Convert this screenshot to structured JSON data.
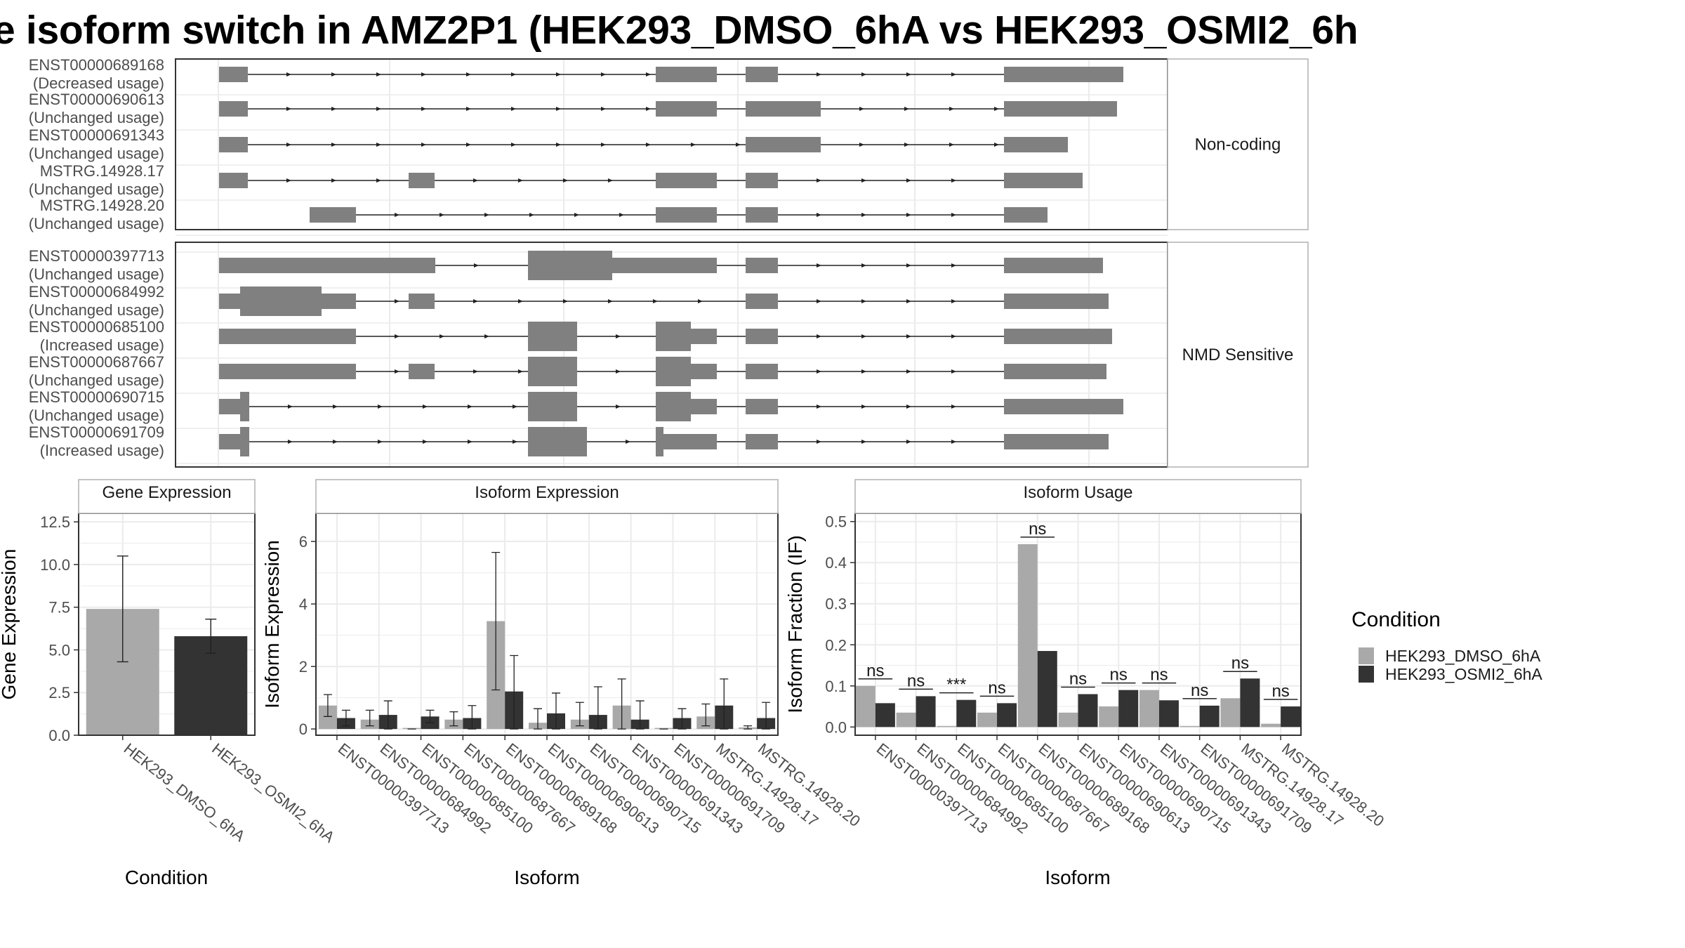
{
  "title": "e isoform switch in AMZ2P1 (HEK293_DMSO_6hA vs HEK293_OSMI2_6h",
  "colors": {
    "exon": "#808080",
    "dmso": "#a9a9a9",
    "osmi": "#333333",
    "grid": "#ebebeb",
    "panel_border": "#333333",
    "strip_border": "#b0b0b0"
  },
  "chart_data": [
    {
      "type": "gene-structure",
      "facets": [
        {
          "label": "Non-coding",
          "isoforms": [
            {
              "id": "ENST00000689168",
              "usage": "(Decreased usage)"
            },
            {
              "id": "ENST00000690613",
              "usage": "(Unchanged usage)"
            },
            {
              "id": "ENST00000691343",
              "usage": "(Unchanged usage)"
            },
            {
              "id": "MSTRG.14928.17",
              "usage": "(Unchanged usage)"
            },
            {
              "id": "MSTRG.14928.20",
              "usage": "(Unchanged usage)"
            }
          ]
        },
        {
          "label": "NMD Sensitive",
          "isoforms": [
            {
              "id": "ENST00000397713",
              "usage": "(Unchanged usage)"
            },
            {
              "id": "ENST00000684992",
              "usage": "(Unchanged usage)"
            },
            {
              "id": "ENST00000685100",
              "usage": "(Increased usage)"
            },
            {
              "id": "ENST00000687667",
              "usage": "(Unchanged usage)"
            },
            {
              "id": "ENST00000690715",
              "usage": "(Unchanged usage)"
            },
            {
              "id": "ENST00000691709",
              "usage": "(Increased usage)"
            }
          ]
        }
      ]
    },
    {
      "type": "bar",
      "title": "Gene Expression",
      "xlabel": "Condition",
      "ylabel": "Gene Expression",
      "ylim": [
        0,
        13
      ],
      "yticks": [
        "0.0",
        "2.5",
        "5.0",
        "7.5",
        "10.0",
        "12.5"
      ],
      "categories": [
        "HEK293_DMSO_6hA",
        "HEK293_OSMI2_6hA"
      ],
      "values": [
        7.4,
        5.8
      ],
      "error_low": [
        4.3,
        4.8
      ],
      "error_high": [
        10.5,
        6.8
      ]
    },
    {
      "type": "bar",
      "title": "Isoform Expression",
      "xlabel": "Isoform",
      "ylabel": "Isoform Expression",
      "ylim": [
        -0.2,
        6.9
      ],
      "yticks": [
        "0",
        "2",
        "4",
        "6"
      ],
      "categories": [
        "ENST00000397713",
        "ENST00000684992",
        "ENST00000685100",
        "ENST00000687667",
        "ENST00000689168",
        "ENST00000690613",
        "ENST00000690715",
        "ENST00000691343",
        "ENST00000691709",
        "MSTRG.14928.17",
        "MSTRG.14928.20"
      ],
      "series": [
        {
          "name": "HEK293_DMSO_6hA",
          "values": [
            0.75,
            0.3,
            0.0,
            0.3,
            3.45,
            0.2,
            0.3,
            0.75,
            0.0,
            0.4,
            0.05
          ],
          "error_low": [
            0.4,
            0.1,
            0.0,
            0.1,
            1.25,
            0.0,
            0.1,
            0.0,
            0.0,
            0.1,
            0.0
          ],
          "error_high": [
            1.1,
            0.6,
            0.0,
            0.55,
            5.65,
            0.65,
            0.85,
            1.6,
            0.0,
            0.8,
            0.1
          ]
        },
        {
          "name": "HEK293_OSMI2_6hA",
          "values": [
            0.35,
            0.45,
            0.4,
            0.35,
            1.2,
            0.5,
            0.45,
            0.3,
            0.35,
            0.75,
            0.35
          ],
          "error_low": [
            0.1,
            0.0,
            0.2,
            0.0,
            0.0,
            0.0,
            0.0,
            0.0,
            0.0,
            0.0,
            0.0
          ],
          "error_high": [
            0.6,
            0.9,
            0.6,
            0.75,
            2.35,
            1.15,
            1.35,
            0.9,
            0.65,
            1.6,
            0.85
          ]
        }
      ]
    },
    {
      "type": "bar",
      "title": "Isoform Usage",
      "xlabel": "Isoform",
      "ylabel": "Isoform Fraction (IF)",
      "ylim": [
        -0.02,
        0.52
      ],
      "yticks": [
        "0.0",
        "0.1",
        "0.2",
        "0.3",
        "0.4",
        "0.5"
      ],
      "categories": [
        "ENST00000397713",
        "ENST00000684992",
        "ENST00000685100",
        "ENST00000687667",
        "ENST00000689168",
        "ENST00000690613",
        "ENST00000690715",
        "ENST00000691343",
        "ENST00000691709",
        "MSTRG.14928.17",
        "MSTRG.14928.20"
      ],
      "series": [
        {
          "name": "HEK293_DMSO_6hA",
          "values": [
            0.1,
            0.035,
            0.0,
            0.035,
            0.445,
            0.035,
            0.05,
            0.09,
            0.0,
            0.07,
            0.008
          ]
        },
        {
          "name": "HEK293_OSMI2_6hA",
          "values": [
            0.058,
            0.075,
            0.066,
            0.058,
            0.185,
            0.08,
            0.09,
            0.065,
            0.052,
            0.118,
            0.05
          ]
        }
      ],
      "significance": [
        "ns",
        "ns",
        "***",
        "ns",
        "ns",
        "ns",
        "ns",
        "ns",
        "ns",
        "ns",
        "ns"
      ]
    }
  ],
  "legend": {
    "title": "Condition",
    "items": [
      "HEK293_DMSO_6hA",
      "HEK293_OSMI2_6hA"
    ]
  }
}
